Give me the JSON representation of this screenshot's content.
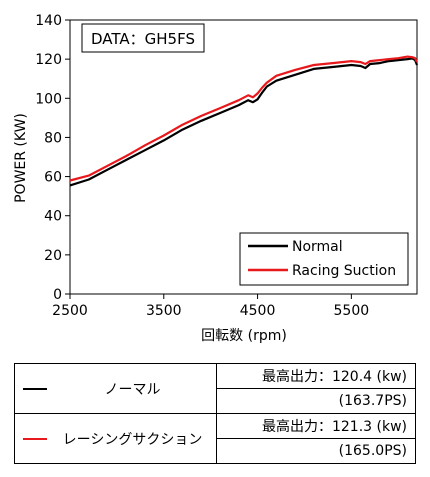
{
  "chart_data": {
    "type": "line",
    "title": "",
    "annotation": "DATA：GH5FS",
    "xlabel": "回転数 (rpm)",
    "ylabel": "POWER (KW)",
    "xlim": [
      2500,
      6200
    ],
    "ylim": [
      0,
      140
    ],
    "xticks": [
      "2500",
      "3500",
      "4500",
      "5500"
    ],
    "yticks": [
      "0",
      "20",
      "40",
      "60",
      "80",
      "100",
      "120",
      "140"
    ],
    "legend_position": "bottom-right",
    "series": [
      {
        "name": "Normal",
        "color": "#000000",
        "x": [
          2500,
          2700,
          2900,
          3100,
          3300,
          3500,
          3700,
          3900,
          4100,
          4300,
          4400,
          4450,
          4500,
          4550,
          4600,
          4700,
          4900,
          5100,
          5300,
          5500,
          5600,
          5650,
          5700,
          5800,
          5900,
          6000,
          6100,
          6150,
          6180,
          6200
        ],
        "y": [
          55.5,
          58.5,
          63.5,
          68.5,
          73.5,
          78.5,
          84.0,
          88.5,
          92.5,
          96.5,
          99.0,
          98.0,
          99.5,
          103.0,
          106.0,
          109.0,
          112.0,
          115.0,
          116.0,
          117.0,
          116.5,
          115.5,
          117.5,
          118.0,
          119.0,
          119.5,
          120.0,
          120.4,
          119.5,
          117.0
        ]
      },
      {
        "name": "Racing Suction",
        "color": "#e8191c",
        "x": [
          2500,
          2700,
          2900,
          3100,
          3300,
          3500,
          3700,
          3900,
          4100,
          4300,
          4400,
          4450,
          4500,
          4550,
          4600,
          4700,
          4900,
          5100,
          5300,
          5500,
          5600,
          5650,
          5700,
          5800,
          5900,
          6000,
          6100,
          6150,
          6180,
          6200
        ],
        "y": [
          58.0,
          60.5,
          65.5,
          70.5,
          76.0,
          81.0,
          86.5,
          91.0,
          95.0,
          99.0,
          101.5,
          100.5,
          102.5,
          105.5,
          108.0,
          111.5,
          114.5,
          117.0,
          118.0,
          119.0,
          118.5,
          117.5,
          119.0,
          119.5,
          120.0,
          120.5,
          121.3,
          121.0,
          120.5,
          118.5
        ]
      }
    ]
  },
  "table": {
    "rows": [
      {
        "name": "ノーマル",
        "color": "#000000",
        "max_power": "最高出力：120.4 (kw)",
        "ps": "(163.7PS)"
      },
      {
        "name": "レーシングサクション",
        "color": "#e8191c",
        "max_power": "最高出力：121.3 (kw)",
        "ps": "(165.0PS)"
      }
    ]
  }
}
